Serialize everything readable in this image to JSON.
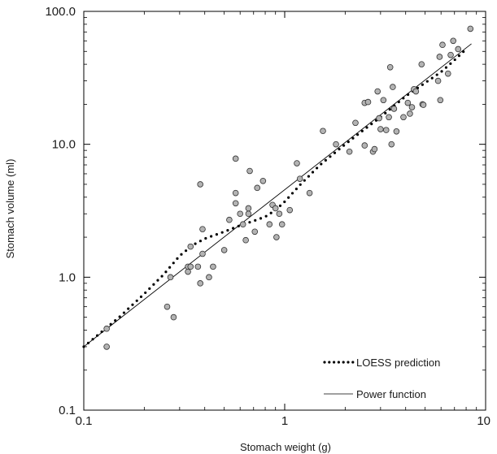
{
  "chart_data": {
    "type": "scatter",
    "xlabel": "Stomach weight (g)",
    "ylabel": "Stomach volume (ml)",
    "x_scale": "log",
    "y_scale": "log",
    "xlim": [
      0.1,
      10
    ],
    "ylim": [
      0.1,
      100
    ],
    "x_ticks": [
      {
        "value": 0.1,
        "label": "0.1"
      },
      {
        "value": 1,
        "label": "1"
      },
      {
        "value": 10,
        "label": "10"
      }
    ],
    "y_ticks": [
      {
        "value": 0.1,
        "label": "0.1"
      },
      {
        "value": 1,
        "label": "1.0"
      },
      {
        "value": 10,
        "label": "10.0"
      },
      {
        "value": 100,
        "label": "100.0"
      }
    ],
    "grid": false,
    "legend_position": "bottom-right",
    "series": [
      {
        "kind": "points",
        "marker_fill": "#b3b3b3",
        "marker_stroke": "#333333",
        "points": [
          [
            0.13,
            0.41
          ],
          [
            0.13,
            0.3
          ],
          [
            0.26,
            0.6
          ],
          [
            0.27,
            1.0
          ],
          [
            0.28,
            0.5
          ],
          [
            0.33,
            1.1
          ],
          [
            0.33,
            1.2
          ],
          [
            0.34,
            1.7
          ],
          [
            0.34,
            1.2
          ],
          [
            0.37,
            1.2
          ],
          [
            0.38,
            0.9
          ],
          [
            0.38,
            5.0
          ],
          [
            0.39,
            1.5
          ],
          [
            0.39,
            2.3
          ],
          [
            0.42,
            1.0
          ],
          [
            0.44,
            1.2
          ],
          [
            0.5,
            1.6
          ],
          [
            0.53,
            2.7
          ],
          [
            0.57,
            4.3
          ],
          [
            0.57,
            3.6
          ],
          [
            0.57,
            7.8
          ],
          [
            0.6,
            3.0
          ],
          [
            0.62,
            2.5
          ],
          [
            0.64,
            1.9
          ],
          [
            0.66,
            3.3
          ],
          [
            0.66,
            3.0
          ],
          [
            0.67,
            6.3
          ],
          [
            0.71,
            2.2
          ],
          [
            0.73,
            4.7
          ],
          [
            0.78,
            5.3
          ],
          [
            0.84,
            2.5
          ],
          [
            0.87,
            3.5
          ],
          [
            0.9,
            3.3
          ],
          [
            0.91,
            2.0
          ],
          [
            0.94,
            3.0
          ],
          [
            0.97,
            2.5
          ],
          [
            1.06,
            3.2
          ],
          [
            1.15,
            7.2
          ],
          [
            1.19,
            5.5
          ],
          [
            1.33,
            4.3
          ],
          [
            1.55,
            12.6
          ],
          [
            1.8,
            10.0
          ],
          [
            2.1,
            8.8
          ],
          [
            2.25,
            14.5
          ],
          [
            2.5,
            9.8
          ],
          [
            2.5,
            20.5
          ],
          [
            2.6,
            20.8
          ],
          [
            2.75,
            8.8
          ],
          [
            2.8,
            9.2
          ],
          [
            2.9,
            25.0
          ],
          [
            2.95,
            15.7
          ],
          [
            3.0,
            13.0
          ],
          [
            3.1,
            21.5
          ],
          [
            3.2,
            12.8
          ],
          [
            3.3,
            16.0
          ],
          [
            3.35,
            38.0
          ],
          [
            3.4,
            10.0
          ],
          [
            3.45,
            27.0
          ],
          [
            3.5,
            18.5
          ],
          [
            3.6,
            12.5
          ],
          [
            3.9,
            16.0
          ],
          [
            4.1,
            20.5
          ],
          [
            4.2,
            17.0
          ],
          [
            4.3,
            19.0
          ],
          [
            4.4,
            26.0
          ],
          [
            4.5,
            25.0
          ],
          [
            4.8,
            40.0
          ],
          [
            4.85,
            20.0
          ],
          [
            4.9,
            19.8
          ],
          [
            5.8,
            30.0
          ],
          [
            5.9,
            45.5
          ],
          [
            5.95,
            21.5
          ],
          [
            6.1,
            56.0
          ],
          [
            6.5,
            34.0
          ],
          [
            6.7,
            47.0
          ],
          [
            6.9,
            60.0
          ],
          [
            7.3,
            52.0
          ],
          [
            8.4,
            74.0
          ]
        ]
      },
      {
        "name": "LOESS prediction",
        "kind": "dotted-line",
        "color": "#000000",
        "points": [
          [
            0.1,
            0.3
          ],
          [
            0.15,
            0.5
          ],
          [
            0.2,
            0.75
          ],
          [
            0.25,
            1.05
          ],
          [
            0.3,
            1.45
          ],
          [
            0.35,
            1.75
          ],
          [
            0.4,
            1.95
          ],
          [
            0.5,
            2.2
          ],
          [
            0.6,
            2.45
          ],
          [
            0.7,
            2.65
          ],
          [
            0.8,
            2.85
          ],
          [
            0.9,
            3.2
          ],
          [
            1.0,
            3.7
          ],
          [
            1.2,
            5.0
          ],
          [
            1.5,
            7.0
          ],
          [
            2.0,
            10.0
          ],
          [
            2.5,
            13.0
          ],
          [
            3.0,
            16.0
          ],
          [
            4.0,
            23.0
          ],
          [
            5.0,
            29.0
          ],
          [
            6.0,
            35.0
          ],
          [
            7.0,
            43.0
          ],
          [
            8.0,
            52.0
          ]
        ]
      },
      {
        "name": "Power function",
        "kind": "line",
        "color": "#000000",
        "points": [
          [
            0.1,
            0.3
          ],
          [
            8.5,
            57.0
          ]
        ]
      }
    ]
  }
}
